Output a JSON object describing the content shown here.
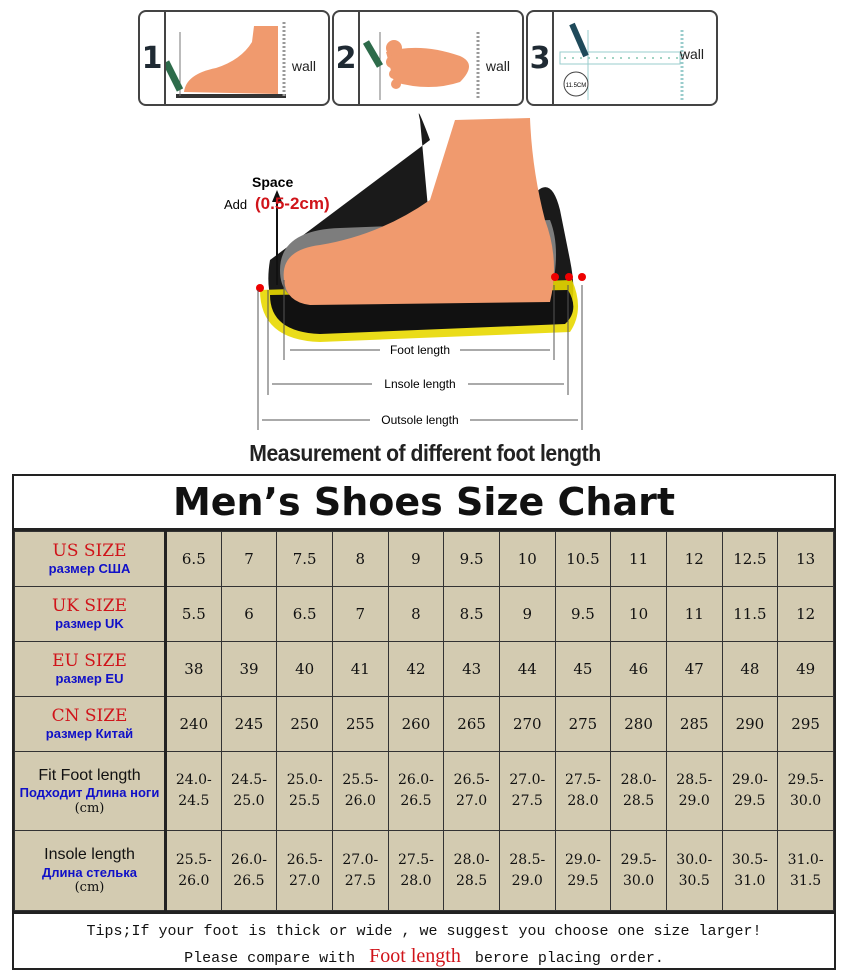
{
  "steps": [
    {
      "num": "1",
      "label": "wall"
    },
    {
      "num": "2",
      "label": "wall"
    },
    {
      "num": "3",
      "label": "wall",
      "badge": "11.5CM"
    }
  ],
  "diagram": {
    "space": "Space",
    "add": "Add",
    "range": "(0.5-2cm)",
    "foot_length": "Foot length",
    "insole_length": "Lnsole length",
    "outsole_length": "Outsole length",
    "caption": "Measurement of different foot length"
  },
  "chart": {
    "title": "Men’s Shoes Size Chart",
    "rows": [
      {
        "label": "US SIZE",
        "sub": "размер США",
        "style": "red",
        "values": [
          "6.5",
          "7",
          "7.5",
          "8",
          "9",
          "9.5",
          "10",
          "10.5",
          "11",
          "12",
          "12.5",
          "13"
        ]
      },
      {
        "label": "UK SIZE",
        "sub": "размер UK",
        "style": "red",
        "values": [
          "5.5",
          "6",
          "6.5",
          "7",
          "8",
          "8.5",
          "9",
          "9.5",
          "10",
          "11",
          "11.5",
          "12"
        ]
      },
      {
        "label": "EU SIZE",
        "sub": "размер EU",
        "style": "red",
        "values": [
          "38",
          "39",
          "40",
          "41",
          "42",
          "43",
          "44",
          "45",
          "46",
          "47",
          "48",
          "49"
        ]
      },
      {
        "label": "CN SIZE",
        "sub": "размер Китай",
        "style": "red",
        "values": [
          "240",
          "245",
          "250",
          "255",
          "260",
          "265",
          "270",
          "275",
          "280",
          "285",
          "290",
          "295"
        ]
      },
      {
        "label": "Fit Foot length",
        "sub": "Подходит Длина ноги",
        "unit": "(cm)",
        "style": "black",
        "values": [
          "24.0-24.5",
          "24.5-25.0",
          "25.0-25.5",
          "25.5-26.0",
          "26.0-26.5",
          "26.5-27.0",
          "27.0-27.5",
          "27.5-28.0",
          "28.0-28.5",
          "28.5-29.0",
          "29.0-29.5",
          "29.5-30.0"
        ]
      },
      {
        "label": "Insole length",
        "sub": "Длина стелька",
        "unit": "(cm)",
        "style": "black",
        "values": [
          "25.5-26.0",
          "26.0-26.5",
          "26.5-27.0",
          "27.0-27.5",
          "27.5-28.0",
          "28.0-28.5",
          "28.5-29.0",
          "29.0-29.5",
          "29.5-30.0",
          "30.0-30.5",
          "30.5-31.0",
          "31.0-31.5"
        ]
      }
    ],
    "tips": {
      "line1": "Tips;If your foot is thick or wide , we suggest you choose one size larger!",
      "line2_pre": "Please compare with",
      "line2_hl": "Foot length",
      "line2_post": "berore placing order."
    }
  },
  "colors": {
    "table_bg": "#d3cbb1",
    "red": "#d0141a",
    "blue": "#1010c8",
    "skin": "#f09a6e"
  }
}
